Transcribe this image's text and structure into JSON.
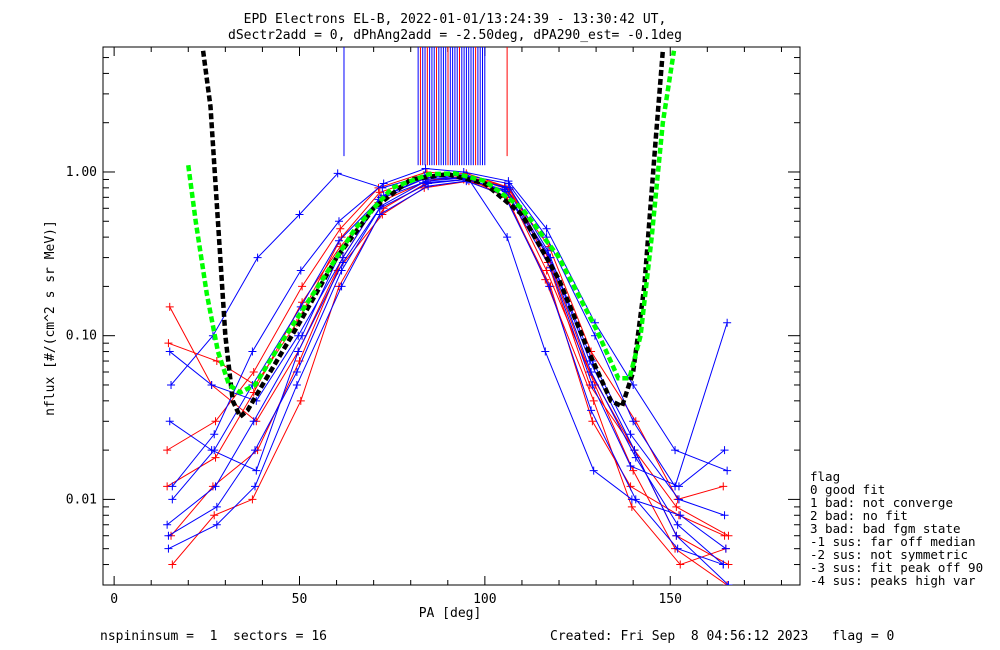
{
  "title": {
    "line1": "EPD Electrons EL-B, 2022-01-01/13:24:39 - 13:30:42 UT,",
    "line2": "dSectr2add = 0, dPhAng2add = -2.50deg, dPA290_est=  -0.1deg"
  },
  "footer": {
    "left": "nspininsum =  1  sectors = 16",
    "right": "Created: Fri Sep  8 04:56:12 2023   flag = 0"
  },
  "legend": {
    "title": "flag",
    "items": [
      "  0 good fit",
      "  1 bad: not converge",
      "  2 bad: no fit",
      "  3 bad: bad fgm state",
      " -1 sus: far off median",
      " -2 sus: not symmetric",
      " -3 sus: fit peak off 90",
      " -4 sus: peaks high var"
    ]
  },
  "colors": {
    "series_a": "#ff0000",
    "series_b": "#0000ff",
    "fit_green": "#00ff00",
    "fit_black": "#000000"
  },
  "chart_data": {
    "type": "line",
    "xlabel": "PA [deg]",
    "ylabel": "nflux [#/(cm^2 s sr MeV)]",
    "xlim": [
      -3,
      185
    ],
    "ylim": [
      0.003,
      5.8
    ],
    "yscale": "log",
    "xticks": [
      0,
      50,
      100,
      150
    ],
    "xtick_labels": [
      "0",
      "50",
      "100",
      "150"
    ],
    "yticks": [
      0.01,
      0.1,
      1.0
    ],
    "ytick_labels": [
      "0.01",
      "0.10",
      "1.00"
    ],
    "pa_centers": [
      15,
      27,
      38,
      50,
      61,
      72,
      84,
      95,
      106,
      117,
      129,
      140,
      152,
      165
    ],
    "series": [
      {
        "color": "red",
        "values": [
          0.012,
          0.018,
          0.045,
          0.16,
          0.35,
          0.65,
          0.88,
          0.95,
          0.8,
          0.3,
          0.06,
          0.02,
          0.006,
          0.004
        ]
      },
      {
        "color": "red",
        "values": [
          0.15,
          0.05,
          0.03,
          0.08,
          0.3,
          0.7,
          0.9,
          0.92,
          0.7,
          0.2,
          0.03,
          0.012,
          0.008,
          0.006
        ]
      },
      {
        "color": "red",
        "values": [
          0.004,
          0.008,
          0.01,
          0.04,
          0.2,
          0.6,
          0.85,
          0.9,
          0.75,
          0.25,
          0.05,
          0.015,
          0.005,
          0.003
        ]
      },
      {
        "color": "red",
        "values": [
          0.09,
          0.07,
          0.05,
          0.12,
          0.4,
          0.75,
          0.95,
          0.98,
          0.82,
          0.35,
          0.08,
          0.03,
          0.01,
          0.012
        ]
      },
      {
        "color": "red",
        "values": [
          0.006,
          0.012,
          0.02,
          0.07,
          0.25,
          0.55,
          0.8,
          0.88,
          0.7,
          0.22,
          0.04,
          0.009,
          0.004,
          0.005
        ]
      },
      {
        "color": "red",
        "values": [
          0.02,
          0.03,
          0.06,
          0.2,
          0.45,
          0.8,
          1.0,
          0.95,
          0.78,
          0.28,
          0.05,
          0.02,
          0.009,
          0.006
        ]
      },
      {
        "color": "blue",
        "values": [
          0.08,
          0.05,
          0.04,
          0.1,
          0.3,
          0.7,
          0.9,
          0.93,
          0.8,
          0.3,
          0.07,
          0.025,
          0.01,
          0.008
        ]
      },
      {
        "color": "blue",
        "values": [
          0.01,
          0.02,
          0.05,
          0.15,
          0.38,
          0.72,
          0.92,
          0.96,
          0.85,
          0.4,
          0.1,
          0.03,
          0.012,
          0.12
        ]
      },
      {
        "color": "blue",
        "values": [
          0.006,
          0.009,
          0.02,
          0.06,
          0.25,
          0.6,
          0.85,
          0.9,
          0.78,
          0.3,
          0.06,
          0.018,
          0.007,
          0.004
        ]
      },
      {
        "color": "blue",
        "values": [
          0.05,
          0.1,
          0.3,
          0.55,
          0.98,
          0.8,
          0.95,
          0.9,
          0.4,
          0.08,
          0.015,
          0.01,
          0.008,
          0.005
        ]
      },
      {
        "color": "blue",
        "values": [
          0.007,
          0.012,
          0.03,
          0.1,
          0.32,
          0.68,
          0.88,
          0.92,
          0.8,
          0.33,
          0.07,
          0.02,
          0.006,
          0.003
        ]
      },
      {
        "color": "blue",
        "values": [
          0.03,
          0.02,
          0.015,
          0.08,
          0.28,
          0.62,
          0.86,
          0.9,
          0.76,
          0.26,
          0.05,
          0.016,
          0.012,
          0.02
        ]
      },
      {
        "color": "blue",
        "values": [
          0.012,
          0.025,
          0.08,
          0.25,
          0.5,
          0.85,
          1.05,
          1.0,
          0.88,
          0.45,
          0.12,
          0.05,
          0.02,
          0.015
        ]
      },
      {
        "color": "blue",
        "values": [
          0.005,
          0.007,
          0.012,
          0.05,
          0.2,
          0.55,
          0.82,
          0.88,
          0.72,
          0.2,
          0.035,
          0.01,
          0.005,
          0.004
        ]
      }
    ],
    "spikes": [
      {
        "x": 62,
        "color": "blue"
      },
      {
        "x": 106,
        "color": "red"
      }
    ],
    "fit_curves": [
      {
        "color": "black",
        "style": "dashed",
        "x": [
          24,
          26,
          28,
          30,
          32,
          34,
          36,
          40,
          50,
          60,
          70,
          80,
          90,
          100,
          110,
          120,
          128,
          134,
          137,
          140,
          143,
          146,
          148
        ],
        "y": [
          5.5,
          2.5,
          0.5,
          0.1,
          0.04,
          0.032,
          0.035,
          0.05,
          0.12,
          0.3,
          0.6,
          0.9,
          0.97,
          0.85,
          0.55,
          0.22,
          0.08,
          0.04,
          0.037,
          0.06,
          0.2,
          1.5,
          5.5
        ]
      },
      {
        "color": "green",
        "style": "dashed",
        "x": [
          20,
          22,
          25,
          28,
          31,
          34,
          38,
          45,
          55,
          65,
          75,
          85,
          92,
          100,
          110,
          120,
          130,
          136,
          139,
          142,
          145,
          148,
          151
        ],
        "y": [
          1.1,
          0.5,
          0.18,
          0.08,
          0.05,
          0.045,
          0.05,
          0.09,
          0.2,
          0.45,
          0.8,
          0.97,
          0.98,
          0.88,
          0.6,
          0.3,
          0.11,
          0.055,
          0.055,
          0.1,
          0.4,
          2.0,
          5.5
        ]
      }
    ]
  }
}
